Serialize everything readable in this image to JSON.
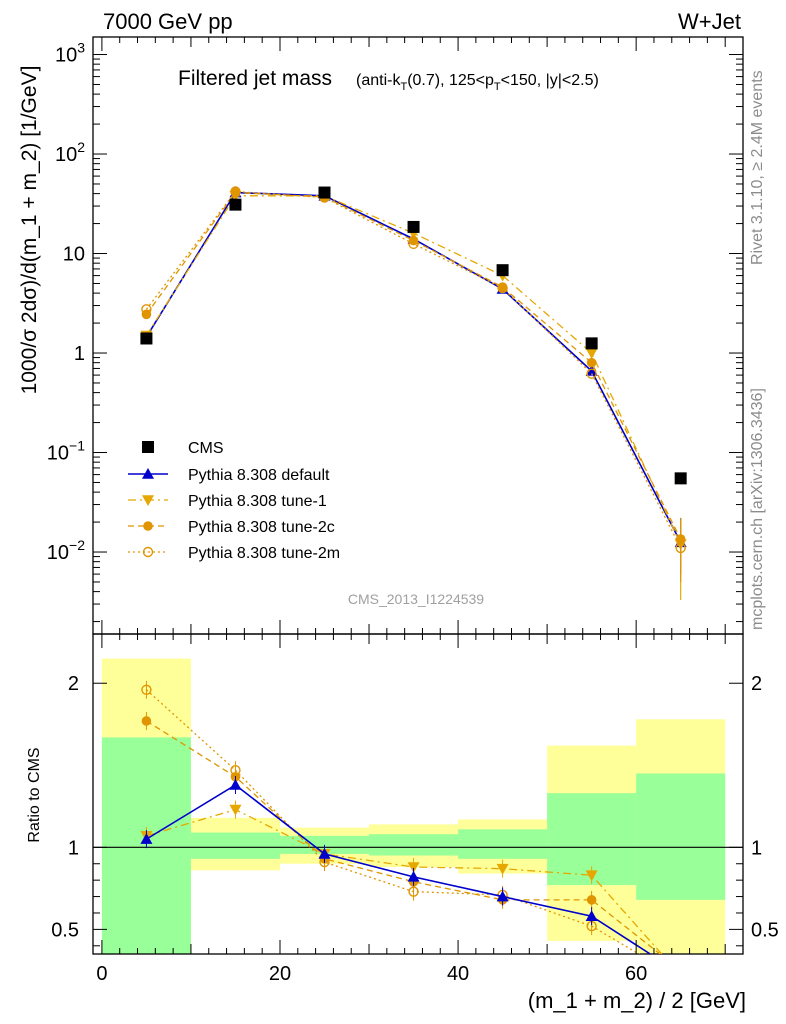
{
  "header": {
    "energy_label": "7000 GeV pp",
    "process_label": "W+Jet"
  },
  "side_labels": {
    "rivet": "Rivet 3.1.10, ≥ 2.4M events",
    "mcplots": "mcplots.cern.ch [arXiv:1306.3436]"
  },
  "plot_title": {
    "main": "Filtered jet mass",
    "cuts": "(anti-k_T(0.7), 125<p_T<150, |y|<2.5)"
  },
  "watermark": "CMS_2013_I1224539",
  "colors": {
    "cms": "#000000",
    "default": "#0000cc",
    "tune1": "#e6a800",
    "tune2c": "#e09500",
    "tune2m": "#e09500",
    "band_yellow": "#ffff99",
    "band_green": "#99ff99"
  },
  "chart_data": [
    {
      "type": "scatter",
      "panel": "main",
      "ylabel": "1000/σ 2dσ)/d(m_1 + m_2) [1/GeV]",
      "yscale": "log",
      "ylim": [
        0.0015,
        1500
      ],
      "xlim": [
        -1,
        72
      ],
      "y_ticks": [
        "10^-2",
        "10^-1",
        "1",
        "10",
        "10^2",
        "10^3"
      ],
      "x": [
        5,
        15,
        25,
        35,
        45,
        55,
        65
      ],
      "series": [
        {
          "name": "CMS",
          "marker": "square",
          "values": [
            1.4,
            31,
            41,
            18.5,
            6.8,
            1.25,
            0.055
          ]
        },
        {
          "name": "Pythia 8.308 default",
          "marker": "triangle-up",
          "line": "solid",
          "values": [
            1.45,
            41,
            38,
            14,
            4.4,
            0.66,
            0.0125
          ],
          "err_last": [
            0.006,
            0.022
          ]
        },
        {
          "name": "Pythia 8.308 tune-1",
          "marker": "triangle-down",
          "line": "dashdot",
          "values": [
            1.5,
            38,
            38,
            16,
            6.0,
            1.0,
            0.012
          ],
          "err_last": [
            0.0033,
            0.021
          ]
        },
        {
          "name": "Pythia 8.308 tune-2c",
          "marker": "circle",
          "line": "dashed",
          "values": [
            2.45,
            41,
            37,
            13.5,
            4.6,
            0.8,
            0.0135
          ],
          "err_last": [
            0.006,
            0.022
          ]
        },
        {
          "name": "Pythia 8.308 tune-2m",
          "marker": "open-circle",
          "line": "dotted",
          "values": [
            2.75,
            42,
            36.5,
            12.5,
            4.5,
            0.62,
            0.011
          ],
          "err_last": [
            0.005,
            0.019
          ]
        }
      ]
    },
    {
      "type": "line",
      "panel": "ratio",
      "ylabel": "Ratio to CMS",
      "xlabel": "(m_1 + m_2) / 2 [GeV]",
      "ylim": [
        0.35,
        2.3
      ],
      "y_ticks": [
        "0.5",
        "1",
        "2"
      ],
      "x_ticks": [
        "0",
        "20",
        "40",
        "60"
      ],
      "x": [
        5,
        15,
        25,
        35,
        45,
        55,
        65
      ],
      "bands": {
        "edges": [
          0,
          10,
          20,
          30,
          40,
          50,
          60,
          70
        ],
        "yellow": [
          [
            0.2,
            2.15
          ],
          [
            0.86,
            1.18
          ],
          [
            0.9,
            1.12
          ],
          [
            0.88,
            1.14
          ],
          [
            0.84,
            1.17
          ],
          [
            0.43,
            1.62
          ],
          [
            0.3,
            1.78
          ]
        ],
        "green": [
          [
            0.35,
            1.67
          ],
          [
            0.93,
            1.09
          ],
          [
            0.96,
            1.07
          ],
          [
            0.95,
            1.08
          ],
          [
            0.93,
            1.11
          ],
          [
            0.77,
            1.33
          ],
          [
            0.68,
            1.45
          ]
        ]
      },
      "series": [
        {
          "name": "Pythia 8.308 default",
          "values": [
            1.05,
            1.38,
            0.96,
            0.82,
            0.7,
            0.58,
            0.23
          ]
        },
        {
          "name": "Pythia 8.308 tune-1",
          "values": [
            1.07,
            1.23,
            0.96,
            0.88,
            0.87,
            0.83,
            0.22
          ]
        },
        {
          "name": "Pythia 8.308 tune-2c",
          "values": [
            1.77,
            1.43,
            0.93,
            0.79,
            0.68,
            0.68,
            0.25
          ]
        },
        {
          "name": "Pythia 8.308 tune-2m",
          "values": [
            1.96,
            1.47,
            0.91,
            0.73,
            0.71,
            0.52,
            0.2
          ]
        }
      ]
    }
  ]
}
